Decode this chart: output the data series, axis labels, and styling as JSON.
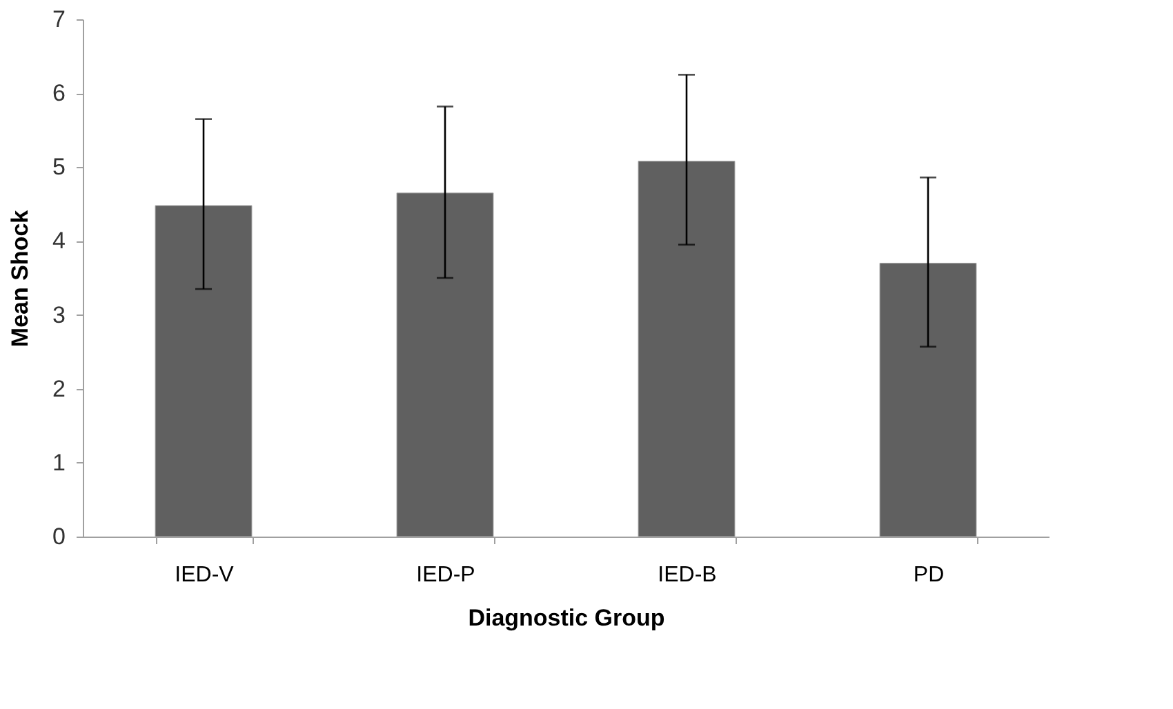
{
  "chart_data": {
    "type": "bar",
    "xlabel": "Diagnostic Group",
    "ylabel": "Mean Shock",
    "categories": [
      "IED-V",
      "IED-P",
      "IED-B",
      "PD"
    ],
    "values": [
      4.48,
      4.65,
      5.08,
      3.7
    ],
    "errors": [
      [
        3.35,
        5.65
      ],
      [
        3.5,
        5.82
      ],
      [
        3.95,
        6.25
      ],
      [
        2.57,
        4.86
      ]
    ],
    "color": "#606060",
    "ylim": [
      0,
      7
    ],
    "yticks": [
      0,
      1,
      2,
      3,
      4,
      5,
      6,
      7
    ],
    "grid": false
  }
}
